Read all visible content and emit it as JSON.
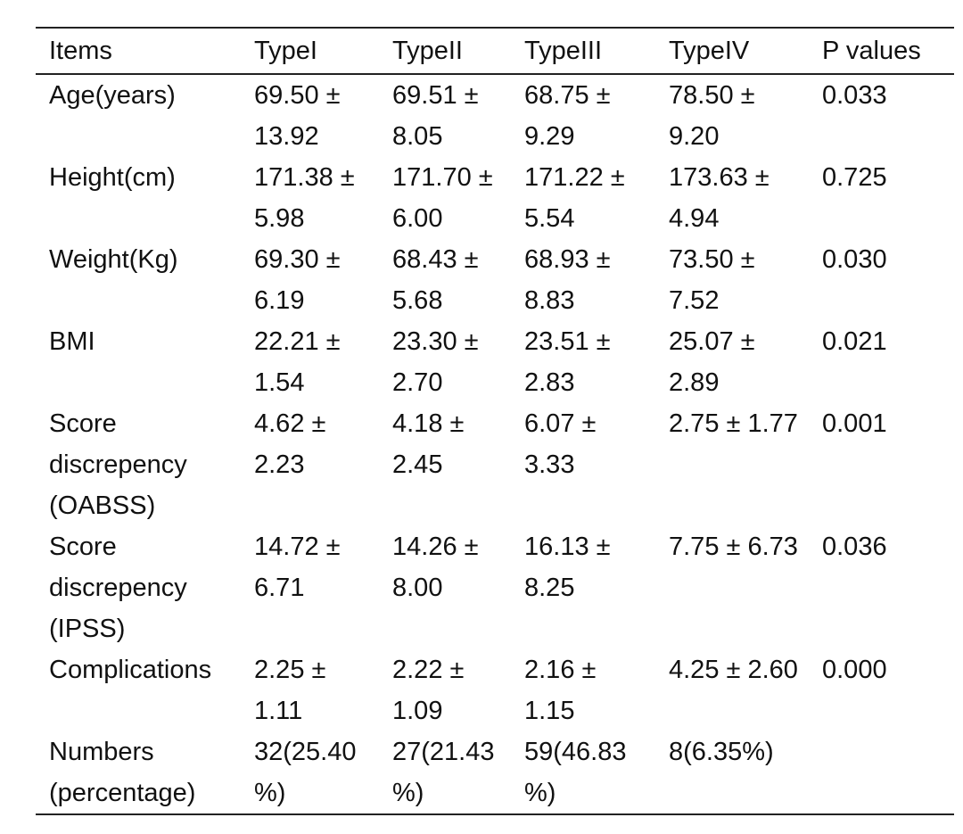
{
  "table": {
    "header": [
      "Items",
      "TypeI",
      "TypeII",
      "TypeIII",
      "TypeIV",
      "P values"
    ],
    "rows": [
      [
        "Age(years)",
        "69.50 ± 13.92",
        "69.51 ± 8.05",
        "68.75 ± 9.29",
        "78.50 ± 9.20",
        "0.033"
      ],
      [
        "Height(cm)",
        "171.38 ± 5.98",
        "171.70 ± 6.00",
        "171.22 ± 5.54",
        "173.63 ± 4.94",
        "0.725"
      ],
      [
        "Weight(Kg)",
        "69.30 ± 6.19",
        "68.43 ± 5.68",
        "68.93 ± 8.83",
        "73.50 ± 7.52",
        "0.030"
      ],
      [
        "BMI",
        "22.21 ± 1.54",
        "23.30 ± 2.70",
        "23.51 ± 2.83",
        "25.07 ± 2.89",
        "0.021"
      ],
      [
        "Score discrepency (OABSS)",
        "4.62 ± 2.23",
        "4.18 ± 2.45",
        "6.07 ± 3.33",
        "2.75 ± 1.77",
        "0.001"
      ],
      [
        "Score discrepency (IPSS)",
        "14.72 ± 6.71",
        "14.26 ± 8.00",
        "16.13 ± 8.25",
        "7.75 ± 6.73",
        "0.036"
      ],
      [
        "Complications",
        "2.25 ± 1.11",
        "2.22 ± 1.09",
        "2.16 ± 1.15",
        "4.25 ± 2.60",
        "0.000"
      ],
      [
        "Numbers (percentage)",
        "32(25.40%)",
        "27(21.43%)",
        "59(46.83%)",
        "8(6.35%)",
        ""
      ]
    ]
  }
}
